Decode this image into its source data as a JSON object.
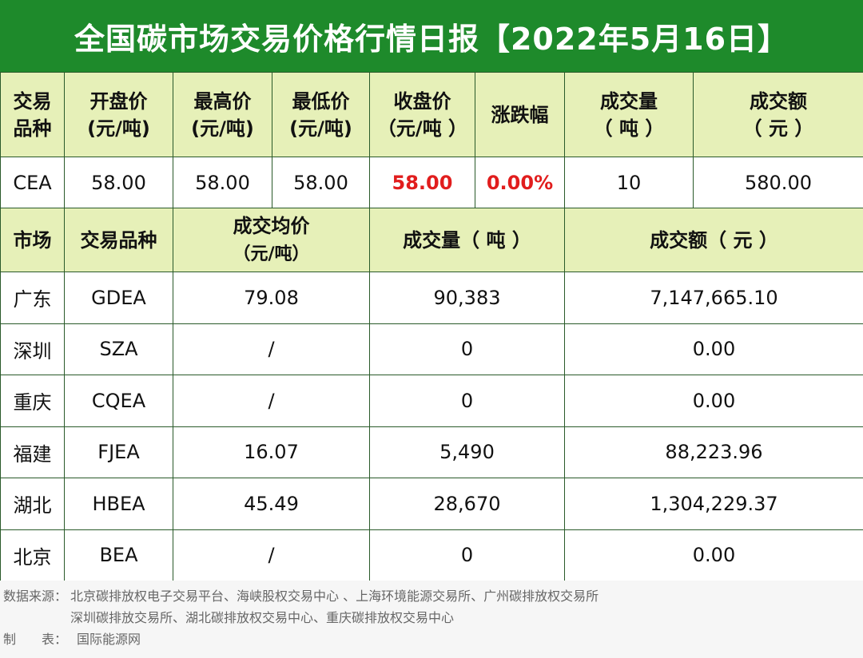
{
  "title": "全国碳市场交易价格行情日报【2022年5月16日】",
  "cea_table": {
    "headers": [
      [
        "交易",
        "品种"
      ],
      [
        "开盘价",
        "(元/吨)"
      ],
      [
        "最高价",
        "(元/吨)"
      ],
      [
        "最低价",
        "(元/吨)"
      ],
      [
        "收盘价",
        "（元/吨 ）"
      ],
      [
        "涨跌幅"
      ],
      [
        "成交量",
        "（ 吨 ）"
      ],
      [
        "成交额",
        "（ 元 ）"
      ]
    ],
    "row": [
      "CEA",
      "58.00",
      "58.00",
      "58.00",
      "58.00",
      "0.00%",
      "10",
      "580.00"
    ]
  },
  "regional_table": {
    "headers": {
      "market": "市场",
      "variety": "交易品种",
      "avg_price_1": "成交均价",
      "avg_price_2": "（元/吨）",
      "volume": "成交量（ 吨 ）",
      "amount": "成交额（ 元 ）"
    },
    "rows": [
      {
        "market": "广东",
        "variety": "GDEA",
        "avg_price": "79.08",
        "volume": "90,383",
        "amount": "7,147,665.10"
      },
      {
        "market": "深圳",
        "variety": "SZA",
        "avg_price": "/",
        "volume": "0",
        "amount": "0.00"
      },
      {
        "market": "重庆",
        "variety": "CQEA",
        "avg_price": "/",
        "volume": "0",
        "amount": "0.00"
      },
      {
        "market": "福建",
        "variety": "FJEA",
        "avg_price": "16.07",
        "volume": "5,490",
        "amount": "88,223.96"
      },
      {
        "market": "湖北",
        "variety": "HBEA",
        "avg_price": "45.49",
        "volume": "28,670",
        "amount": "1,304,229.37"
      },
      {
        "market": "北京",
        "variety": "BEA",
        "avg_price": "/",
        "volume": "0",
        "amount": "0.00"
      }
    ]
  },
  "footer": {
    "source_label": "数据来源：",
    "source_line1": "北京碳排放权电子交易平台、海峡股权交易中心 、上海环境能源交易所、广州碳排放权交易所",
    "source_line2": "深圳碳排放交易所、湖北碳排放权交易中心、重庆碳排放权交易中心",
    "maker_label": "制　　表：",
    "maker": "国际能源网"
  },
  "colors": {
    "title_bg": "#1e8a2b",
    "header_bg": "#e6f0b8",
    "border": "#2a5a2a",
    "highlight": "#e11d1d"
  }
}
